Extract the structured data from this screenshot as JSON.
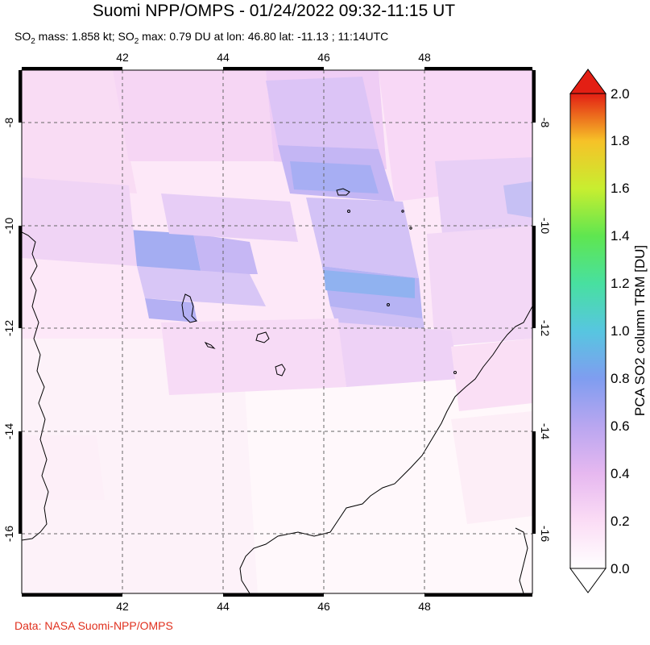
{
  "header": {
    "title": "Suomi NPP/OMPS - 01/24/2022 09:32-11:15 UT",
    "subtitle_prefix": "SO",
    "subtitle_sub": "2",
    "subtitle_mid": " mass: 1.858 kt; SO",
    "subtitle_sub2": "2",
    "subtitle_rest": " max: 0.79 DU at lon: 46.80 lat: -11.13 ; 11:14UTC"
  },
  "map": {
    "lon_ticks": [
      "42",
      "44",
      "46",
      "48"
    ],
    "lat_ticks": [
      "-8",
      "-10",
      "-12",
      "-14",
      "-16"
    ],
    "lon_range": [
      40,
      50
    ],
    "lat_range": [
      -17,
      -7
    ]
  },
  "colorbar": {
    "ticks": [
      "0.0",
      "0.2",
      "0.4",
      "0.6",
      "0.8",
      "1.0",
      "1.2",
      "1.4",
      "1.6",
      "1.8",
      "2.0"
    ],
    "label": "PCA SO2 column TRM [DU]",
    "colors": [
      "#ffffff",
      "#fbdcf5",
      "#e6b8f0",
      "#b9a6f0",
      "#7f9df0",
      "#57c6e0",
      "#48e0a0",
      "#5fe650",
      "#c8ee30",
      "#f6c228",
      "#ee6020",
      "#e31f14"
    ]
  },
  "credit": "Data: NASA Suomi-NPP/OMPS"
}
